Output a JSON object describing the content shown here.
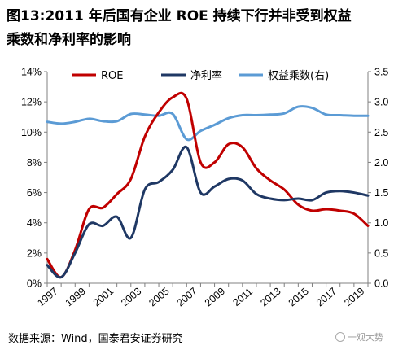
{
  "title_lines": [
    "图13:2011 年后国有企业 ROE 持续下行并非受到权益",
    "乘数和净利率的影响"
  ],
  "source": "数据来源：Wind，国泰君安证券研究",
  "watermark": "一观大势",
  "chart_data": {
    "type": "line",
    "x": [
      1997,
      1998,
      1999,
      2000,
      2001,
      2002,
      2003,
      2004,
      2005,
      2006,
      2007,
      2008,
      2009,
      2010,
      2011,
      2012,
      2013,
      2014,
      2015,
      2016,
      2017,
      2018,
      2019,
      2020
    ],
    "series": [
      {
        "name": "ROE",
        "axis": "left",
        "color": "#C00000",
        "values": [
          1.6,
          0.4,
          2.2,
          4.9,
          5.0,
          5.9,
          6.9,
          9.7,
          11.3,
          12.3,
          12.2,
          8.0,
          8.0,
          9.2,
          9.0,
          7.6,
          6.8,
          6.2,
          5.2,
          4.8,
          4.9,
          4.8,
          4.6,
          3.8
        ]
      },
      {
        "name": "净利率",
        "axis": "left",
        "color": "#1F3864",
        "values": [
          1.2,
          0.4,
          2.0,
          3.9,
          3.8,
          4.4,
          3.0,
          6.2,
          6.7,
          7.5,
          9.0,
          6.0,
          6.4,
          6.9,
          6.8,
          5.9,
          5.6,
          5.5,
          5.6,
          5.5,
          6.0,
          6.1,
          6.0,
          5.8
        ]
      },
      {
        "name": "权益乘数(右)",
        "axis": "right",
        "color": "#5B9BD5",
        "values": [
          2.67,
          2.64,
          2.67,
          2.72,
          2.68,
          2.68,
          2.8,
          2.79,
          2.77,
          2.8,
          2.38,
          2.52,
          2.62,
          2.73,
          2.78,
          2.78,
          2.79,
          2.81,
          2.92,
          2.9,
          2.79,
          2.78,
          2.77,
          2.77
        ]
      }
    ],
    "y_left": {
      "min": 0,
      "max": 14,
      "step": 2,
      "format": "percent"
    },
    "y_right": {
      "min": 0,
      "max": 3.5,
      "step": 0.5,
      "decimals": 1
    },
    "x_ticks": [
      1997,
      1999,
      2001,
      2003,
      2005,
      2007,
      2009,
      2011,
      2013,
      2015,
      2017,
      2019
    ],
    "legend_position": "top",
    "grid": false
  }
}
